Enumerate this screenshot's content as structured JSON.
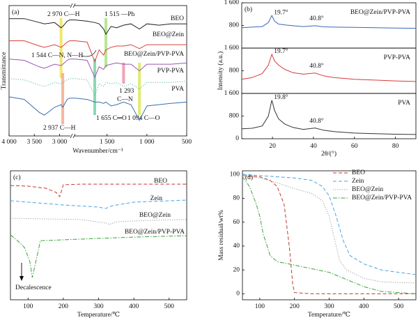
{
  "chart_data": [
    {
      "type": "ftir",
      "panel": "(a)",
      "xlabel": "Wavenumber/cm⁻¹",
      "ylabel": "Transmittance",
      "x": [
        4000,
        3700,
        3400,
        3300,
        3100,
        2970,
        2937,
        2850,
        2800,
        1900,
        1750,
        1655,
        1600,
        1544,
        1515,
        1450,
        1380,
        1293,
        1200,
        1094,
        1000,
        850,
        700,
        500
      ],
      "xlim": [
        4000,
        500
      ],
      "xbreak": [
        2800,
        1900
      ],
      "xticks": [
        {
          "value": 4000,
          "label": "4 000"
        },
        {
          "value": 3500,
          "label": "3 500"
        },
        {
          "value": 3000,
          "label": "3 000"
        },
        {
          "value": 1500,
          "label": "1 500"
        },
        {
          "value": 1000,
          "label": "1 000"
        },
        500
      ],
      "ylim": [
        0,
        100
      ],
      "series": [
        {
          "name": "BEO",
          "color": "#222222",
          "style": "solid",
          "values": [
            90,
            90,
            87,
            86,
            87,
            83,
            84,
            88,
            89,
            89,
            88,
            87,
            86,
            82,
            78,
            84,
            83,
            85,
            86,
            82,
            86,
            85,
            86,
            86
          ]
        },
        {
          "name": "BEO@Zein",
          "color": "#d9403a",
          "style": "solid",
          "values": [
            73,
            73,
            69,
            68,
            70,
            68,
            69,
            72,
            73,
            73,
            72,
            57,
            66,
            62,
            66,
            68,
            69,
            69,
            70,
            67,
            70,
            70,
            70,
            70
          ]
        },
        {
          "name": "BEO@Zein/PVP-PVA",
          "color": "#9a55b8",
          "style": "solid",
          "values": [
            59,
            58,
            53,
            52,
            55,
            54,
            55,
            58,
            59,
            59,
            58,
            45,
            53,
            51,
            54,
            55,
            56,
            55,
            55,
            50,
            55,
            55,
            55,
            56
          ]
        },
        {
          "name": "PVP-PVA",
          "color": "#55b89a",
          "style": "dotted",
          "values": [
            44,
            43,
            39,
            38,
            41,
            40,
            41,
            43,
            44,
            44,
            43,
            31,
            40,
            38,
            41,
            40,
            41,
            38,
            40,
            36,
            41,
            41,
            41,
            42
          ]
        },
        {
          "name": "PVA",
          "color": "#3a6fb0",
          "style": "solid",
          "values": [
            30,
            28,
            18,
            16,
            22,
            24,
            22,
            28,
            29,
            29,
            28,
            26,
            26,
            25,
            26,
            23,
            24,
            26,
            24,
            12,
            23,
            24,
            25,
            26
          ]
        }
      ],
      "annotations": [
        {
          "text": [
            "2 970 C—H"
          ],
          "x": 2970,
          "color": "#efe04a"
        },
        {
          "text": [
            "1 515 —Ph"
          ],
          "x": 1515,
          "color": "#a6e07a"
        },
        {
          "text": [
            "1 544 C—N, N—H"
          ],
          "x": 1544
        },
        {
          "text": [
            "1 293",
            "C—N"
          ],
          "x": 1293,
          "color": "#f08aa0"
        },
        {
          "text": [
            "1 655 C═O"
          ],
          "x": 1655,
          "color": "#6fd0a0"
        },
        {
          "text": [
            "2 937 C—H"
          ],
          "x": 2937,
          "color": "#f4a582"
        },
        {
          "text": [
            "1 094 C—O"
          ],
          "x": 1094,
          "color": "#d8e84a"
        }
      ]
    },
    {
      "type": "stacked-line",
      "panel": "(b)",
      "xlabel": "2θ/(°)",
      "ylabel": "Intensity (a.u.)",
      "x": [
        5,
        10,
        15,
        18,
        19.7,
        21,
        23,
        26,
        30,
        35,
        40.8,
        45,
        50,
        60,
        70,
        80,
        90
      ],
      "xlim": [
        5,
        90
      ],
      "xticks": [
        20,
        40,
        60,
        80
      ],
      "series": [
        {
          "name": "BEO@Zein/PVP-PVA",
          "color": "#3a66b5",
          "values": [
            720,
            740,
            760,
            900,
            1150,
            950,
            850,
            820,
            790,
            760,
            790,
            750,
            740,
            730,
            720,
            710,
            700
          ],
          "ylim": [
            0,
            1600
          ],
          "yticks": [
            800,
            {
              "value": 1600,
              "label": "1 600"
            }
          ],
          "peaks": [
            {
              "text": "19.7°",
              "x": 19.7
            },
            {
              "text": "40.8°",
              "x": 40.8
            }
          ]
        },
        {
          "name": "PVP-PVA",
          "color": "#d63a3a",
          "values": [
            500,
            560,
            700,
            1000,
            1380,
            1150,
            1000,
            850,
            730,
            680,
            720,
            620,
            560,
            500,
            470,
            440,
            420
          ],
          "ylim": [
            0,
            1600
          ],
          "yticks": [
            800,
            {
              "value": 1600,
              "label": "1 600"
            }
          ],
          "peaks": [
            {
              "text": "19.7°",
              "x": 19.7
            },
            {
              "text": "40.8°",
              "x": 40.8
            }
          ]
        },
        {
          "name": "PVA",
          "color": "#333333",
          "values": [
            350,
            370,
            450,
            800,
            1360,
            1000,
            700,
            520,
            400,
            330,
            380,
            300,
            250,
            200,
            180,
            160,
            150
          ],
          "ylim": [
            0,
            1600
          ],
          "yticks": [
            0,
            800,
            {
              "value": 1600,
              "label": "1 600"
            }
          ],
          "peaks": [
            {
              "text": "19.8°",
              "x": 19.8
            },
            {
              "text": "40.8°",
              "x": 40.8
            }
          ]
        }
      ]
    },
    {
      "type": "dsc",
      "panel": "(c)",
      "xlabel": "Temperature/℃",
      "annotation": "Decalescence",
      "xlim": [
        50,
        550
      ],
      "xticks": [
        100,
        200,
        300,
        400,
        500
      ],
      "ylim": [
        0,
        100
      ],
      "series": [
        {
          "name": "BEO",
          "color": "#c0392b",
          "style": "dashed",
          "x": [
            50,
            100,
            150,
            180,
            190,
            200,
            250,
            300,
            400,
            550
          ],
          "values": [
            88.6,
            88.1,
            86.5,
            83.2,
            80,
            89.2,
            89.7,
            89.7,
            89.7,
            89.7
          ]
        },
        {
          "name": "Zein",
          "color": "#4aa3df",
          "style": "dashed",
          "x": [
            50,
            100,
            200,
            300,
            320,
            340,
            400,
            550
          ],
          "values": [
            76.8,
            75.7,
            73.5,
            71.9,
            70.8,
            73,
            75.7,
            77.3
          ]
        },
        {
          "name": "BEO@Zein",
          "color": "#999999",
          "style": "dotted",
          "x": [
            50,
            150,
            250,
            320,
            330,
            350,
            450,
            550
          ],
          "values": [
            63.2,
            62.7,
            62.2,
            59.5,
            58.4,
            60.5,
            61.6,
            62.2
          ]
        },
        {
          "name": "BEO@Zein/PVP-PVA",
          "color": "#3aa33a",
          "style": "dashdot",
          "x": [
            50,
            70,
            90,
            105,
            112,
            120,
            135,
            145,
            200,
            300,
            400,
            550
          ],
          "values": [
            50.3,
            45.9,
            40.5,
            29.7,
            17.3,
            27,
            45.9,
            45.9,
            46.5,
            47.6,
            48.6,
            49.7
          ]
        }
      ]
    },
    {
      "type": "tga",
      "panel": "(d)",
      "xlabel": "Temperature/℃",
      "ylabel": "Mass residual/wt%",
      "xlim": [
        50,
        550
      ],
      "xticks": [
        100,
        200,
        300,
        400,
        500
      ],
      "ylim": [
        -5,
        103
      ],
      "yticks": [
        0,
        20,
        40,
        60,
        80,
        100
      ],
      "legend": "upper right",
      "series": [
        {
          "name": "BEO",
          "color": "#c0392b",
          "style": "dashed",
          "x": [
            50,
            100,
            130,
            150,
            170,
            185,
            195,
            200,
            250,
            300,
            400,
            550
          ],
          "values": [
            99,
            98,
            95,
            90,
            75,
            40,
            8,
            1,
            0,
            0,
            0,
            0
          ]
        },
        {
          "name": "Zein",
          "color": "#4aa3df",
          "style": "dashed",
          "x": [
            50,
            100,
            200,
            250,
            280,
            300,
            320,
            340,
            360,
            400,
            450,
            550
          ],
          "values": [
            100,
            99,
            97,
            95,
            90,
            82,
            65,
            45,
            32,
            25,
            20,
            16
          ]
        },
        {
          "name": "BEO@Zein",
          "color": "#999999",
          "style": "dotted",
          "x": [
            50,
            100,
            150,
            200,
            250,
            280,
            300,
            320,
            330,
            350,
            400,
            450,
            550
          ],
          "values": [
            99,
            97,
            93,
            88,
            84,
            78,
            65,
            40,
            28,
            20,
            13,
            10,
            9
          ]
        },
        {
          "name": "BEO@Zein/PVP-PVA",
          "color": "#3aa33a",
          "style": "dashdot",
          "x": [
            50,
            70,
            90,
            100,
            110,
            130,
            150,
            200,
            250,
            300,
            350,
            400,
            450,
            550
          ],
          "values": [
            98,
            90,
            75,
            65,
            50,
            32,
            27,
            24,
            21,
            18,
            12,
            6,
            2,
            0
          ]
        }
      ]
    }
  ]
}
